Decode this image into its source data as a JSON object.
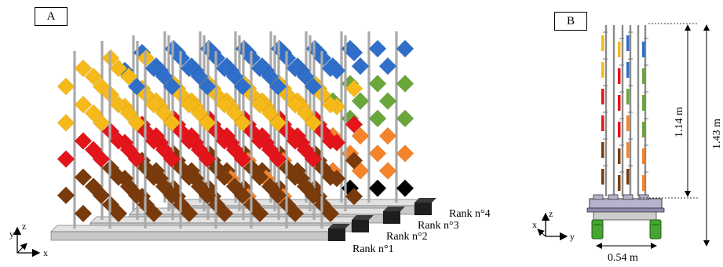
{
  "panel_a": {
    "label": "A",
    "ranks": [
      "Rank n°1",
      "Rank n°2",
      "Rank n°3",
      "Rank n°4"
    ],
    "axes": {
      "z": "z",
      "y": "y",
      "x": "x"
    }
  },
  "panel_b": {
    "label": "B",
    "dimensions": {
      "height_leaves": "1.14 m",
      "height_total": "1.43 m",
      "width_base": "0.54 m"
    },
    "axes": {
      "z": "z",
      "x": "x",
      "y": "y"
    }
  },
  "colors": {
    "blue": "#2f6fc9",
    "yellow": "#f6b91a",
    "green": "#6aa63a",
    "red": "#e4141b",
    "orange": "#f5832a",
    "brown": "#7a3b0c",
    "rail": "#c8c8c8",
    "pole": "#a9a9a9",
    "base": "#b7b3cf",
    "wheel": "#47a534"
  }
}
